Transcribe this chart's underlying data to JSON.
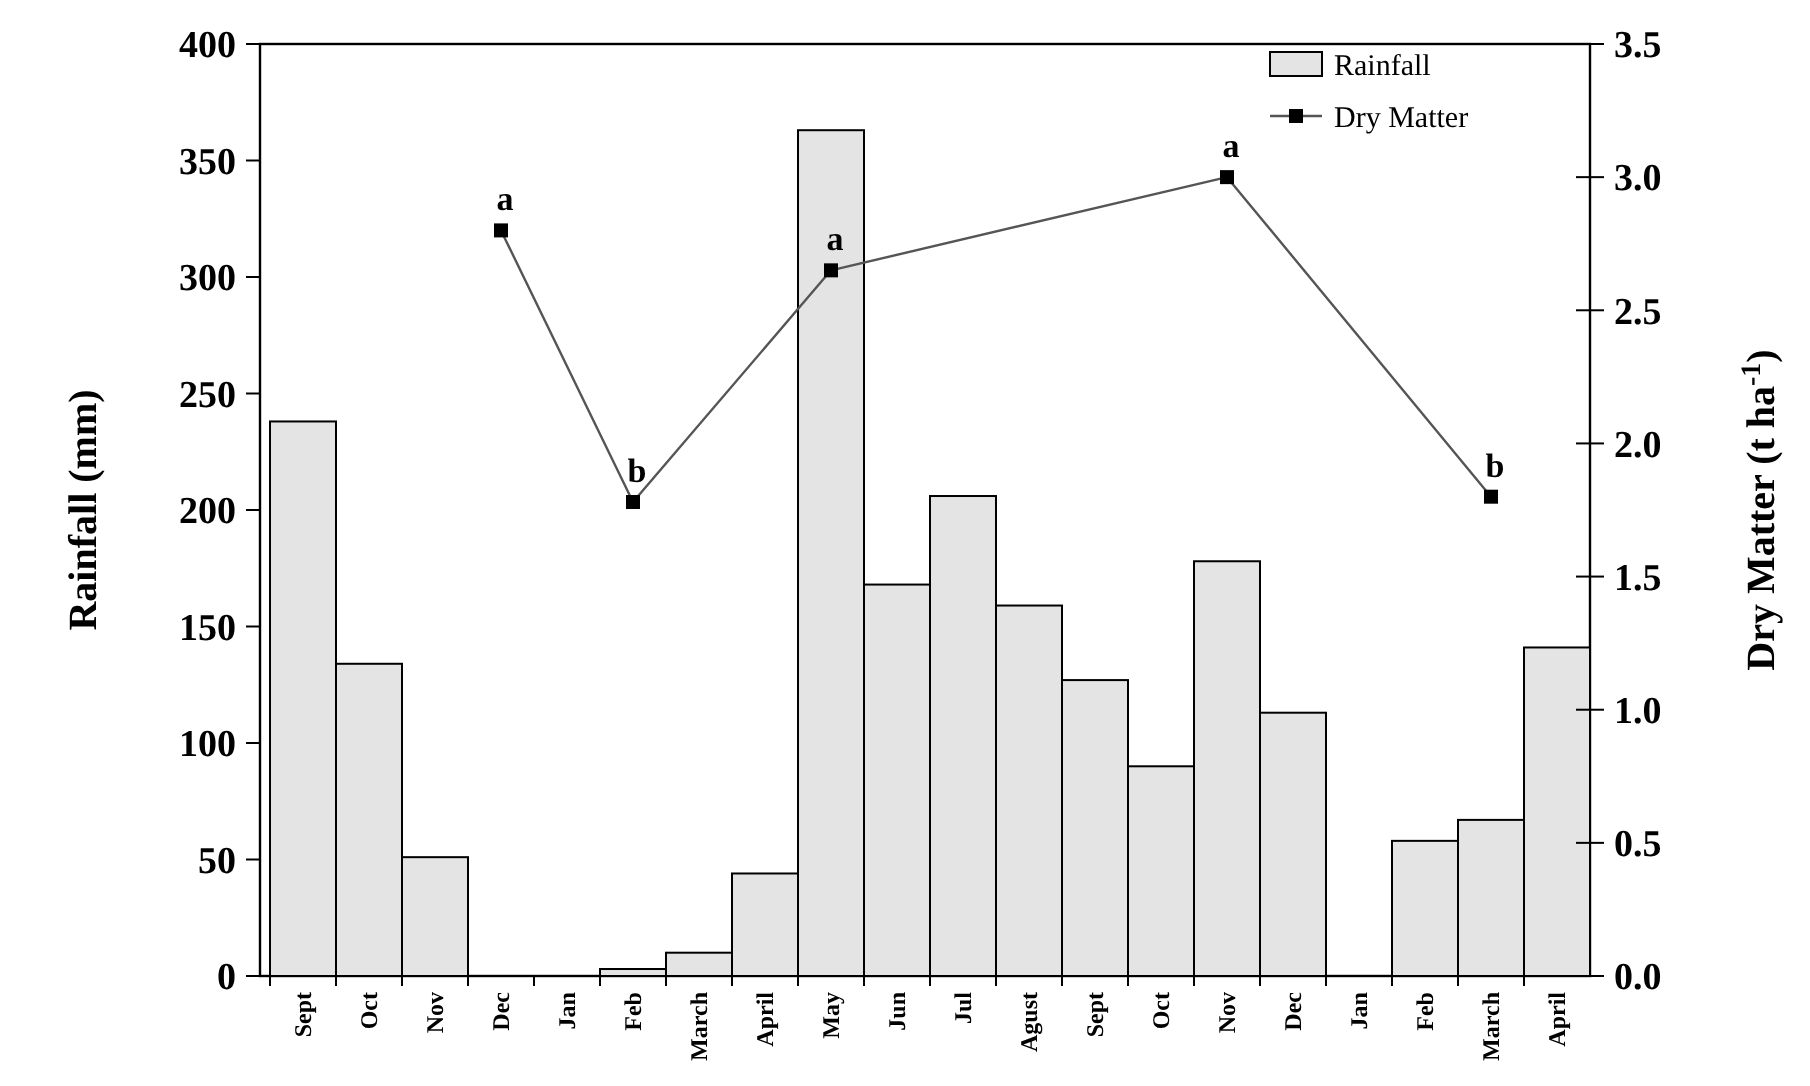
{
  "chart_data": {
    "type": "bar",
    "ylabel": "Rainfall (mm)",
    "y2label": "Dry Matter (t ha$^{-1}$)",
    "categories": [
      "Sept",
      "Oct",
      "Nov",
      "Dec",
      "Jan",
      "Feb",
      "March",
      "April",
      "May",
      "Jun",
      "Jul",
      "Agust",
      "Sept",
      "Oct",
      "Nov",
      "Dec",
      "Jan",
      "Feb",
      "March",
      "April"
    ],
    "series": [
      {
        "name": "Rainfall",
        "color": "#e4e4e4",
        "values": [
          238,
          134,
          51,
          0,
          0,
          3,
          10,
          44,
          363,
          168,
          206,
          159,
          127,
          90,
          178,
          113,
          0,
          58,
          67,
          141
        ]
      },
      {
        "name": "Dry Matter",
        "type": "line",
        "axis": "y2",
        "color": "#555555",
        "marker": "square",
        "values": [
          null,
          null,
          null,
          2.8,
          null,
          1.78,
          null,
          null,
          2.65,
          null,
          null,
          null,
          null,
          null,
          3.0,
          null,
          null,
          null,
          1.8,
          null
        ],
        "value_labels": [
          null,
          null,
          null,
          "a",
          null,
          "b",
          null,
          null,
          "a",
          null,
          null,
          null,
          null,
          null,
          "a",
          null,
          null,
          null,
          "b",
          null
        ]
      }
    ],
    "ylim": [
      0,
      400
    ],
    "yticks": [
      0,
      50,
      100,
      150,
      200,
      250,
      300,
      350,
      400
    ],
    "y2lim": [
      0,
      3.5
    ],
    "y2ticks": [
      {
        "value": 0,
        "label": "0.0"
      },
      0.5,
      {
        "value": 1,
        "label": "1.0"
      },
      1.5,
      {
        "value": 2,
        "label": "2.0"
      },
      2.5,
      {
        "value": 3,
        "label": "3.0"
      },
      3.5
    ],
    "legend": "top right",
    "grid": false
  }
}
